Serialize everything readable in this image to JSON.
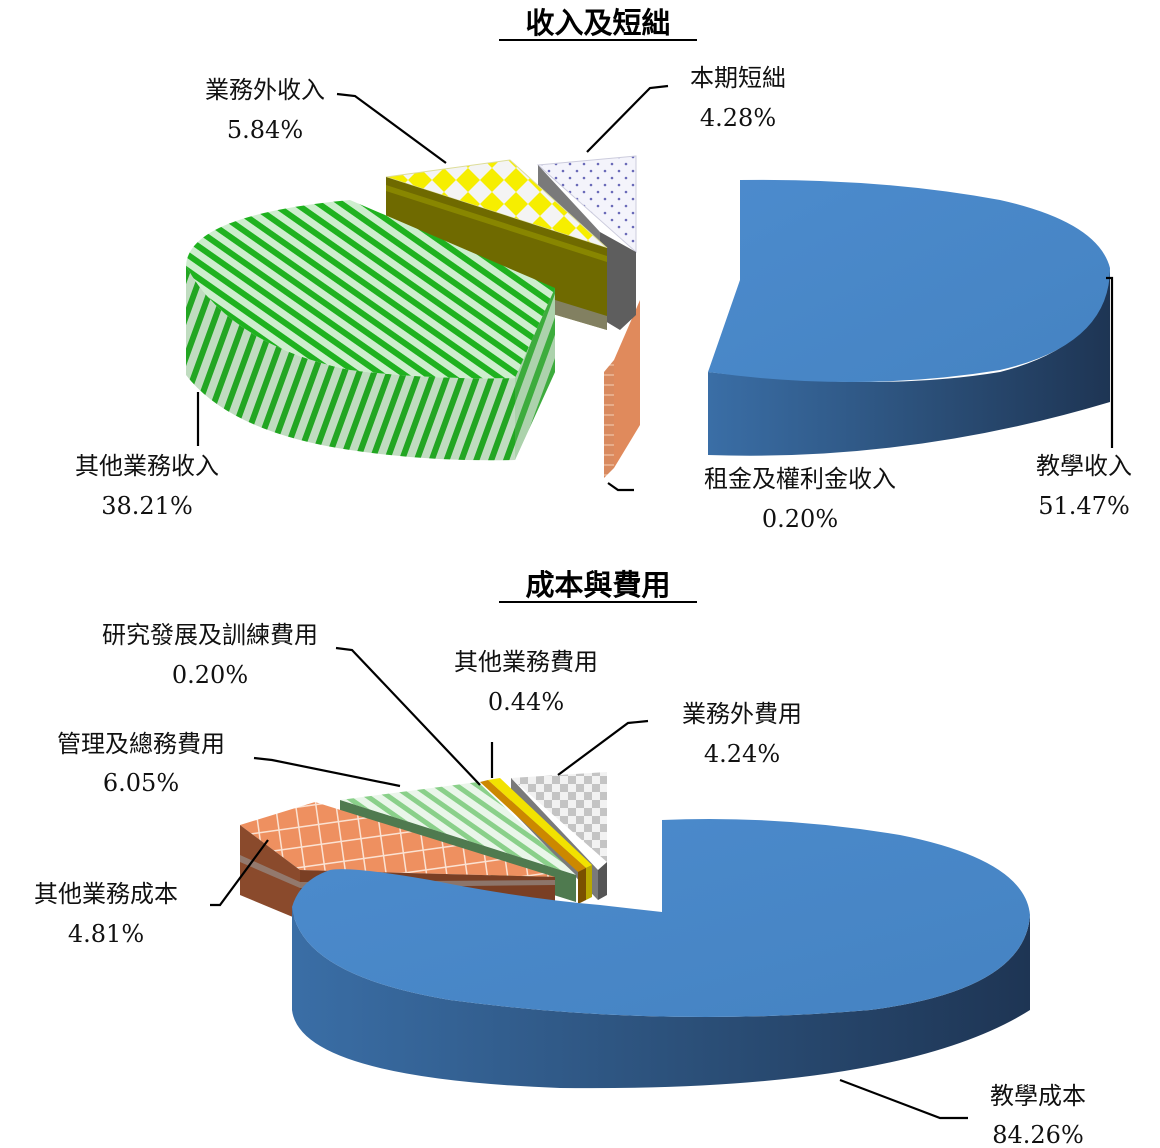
{
  "chart_data": [
    {
      "type": "pie",
      "title": "收入及短絀",
      "slices": [
        {
          "label": "教學收入",
          "value": 51.47,
          "display": "51.47%",
          "color": "#4a88c8"
        },
        {
          "label": "租金及權利金收入",
          "value": 0.2,
          "display": "0.20%",
          "color": "#e08a5c"
        },
        {
          "label": "其他業務收入",
          "value": 38.21,
          "display": "38.21%",
          "color": "#22b322"
        },
        {
          "label": "業務外收入",
          "value": 5.84,
          "display": "5.84%",
          "color": "#f4ea00"
        },
        {
          "label": "本期短絀",
          "value": 4.28,
          "display": "4.28%",
          "color": "#8080c0"
        }
      ]
    },
    {
      "type": "pie",
      "title": "成本與費用",
      "slices": [
        {
          "label": "教學成本",
          "value": 84.26,
          "display": "84.26%",
          "color": "#4a88c8"
        },
        {
          "label": "其他業務成本",
          "value": 4.81,
          "display": "4.81%",
          "color": "#e8804e"
        },
        {
          "label": "管理及總務費用",
          "value": 6.05,
          "display": "6.05%",
          "color": "#8ad08a"
        },
        {
          "label": "研究發展及訓練費用",
          "value": 0.2,
          "display": "0.20%",
          "color": "#cc8800"
        },
        {
          "label": "其他業務費用",
          "value": 0.44,
          "display": "0.44%",
          "color": "#f2e200"
        },
        {
          "label": "業務外費用",
          "value": 4.24,
          "display": "4.24%",
          "color": "#bbbbbb"
        }
      ]
    }
  ]
}
